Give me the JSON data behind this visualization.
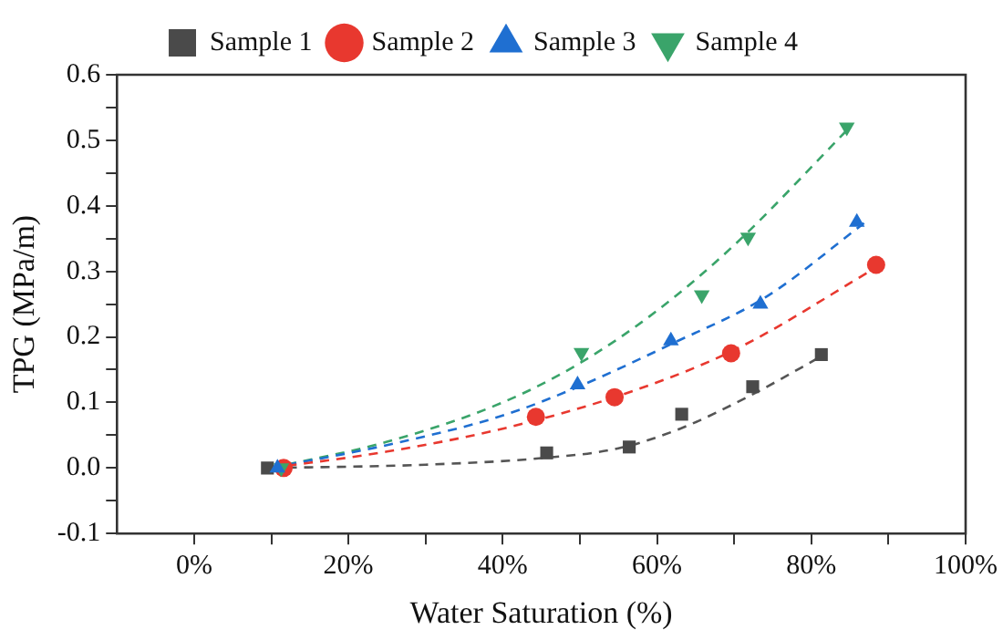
{
  "chart_data": {
    "type": "scatter",
    "xlabel": "Water Saturation (%)",
    "ylabel": "TPG (MPa/m)",
    "xlim": [
      -10,
      100
    ],
    "xticks": [
      {
        "value": 0,
        "label": "0%"
      },
      {
        "value": 10,
        "label": null
      },
      {
        "value": 20,
        "label": "20%"
      },
      {
        "value": 30,
        "label": null
      },
      {
        "value": 40,
        "label": "40%"
      },
      {
        "value": 50,
        "label": null
      },
      {
        "value": 60,
        "label": "60%"
      },
      {
        "value": 70,
        "label": null
      },
      {
        "value": 80,
        "label": "80%"
      },
      {
        "value": 90,
        "label": null
      },
      {
        "value": 100,
        "label": "100%"
      }
    ],
    "ylim": [
      -0.1,
      0.6
    ],
    "yticks": [
      -0.1,
      {
        "value": -0.05,
        "label": null
      },
      {
        "value": 0,
        "label": "0.0"
      },
      {
        "value": 0.05,
        "label": null
      },
      0.1,
      {
        "value": 0.15,
        "label": null
      },
      0.2,
      {
        "value": 0.25,
        "label": null
      },
      0.3,
      {
        "value": 0.35,
        "label": null
      },
      0.4,
      {
        "value": 0.45,
        "label": null
      },
      0.5,
      {
        "value": 0.55,
        "label": null
      },
      0.6
    ],
    "grid": false,
    "legend": "top",
    "series": [
      {
        "type": "line",
        "color": "#555555",
        "marker": "none",
        "line_style": "dashed",
        "x": [
          10,
          30,
          45,
          55,
          63,
          72,
          82
        ],
        "values": [
          0,
          0.005,
          0.015,
          0.03,
          0.06,
          0.11,
          0.175
        ]
      },
      {
        "type": "line",
        "color": "#e8382f",
        "marker": "none",
        "line_style": "dashed",
        "x": [
          10,
          25,
          40,
          55,
          70,
          89
        ],
        "values": [
          0,
          0.025,
          0.06,
          0.11,
          0.18,
          0.31
        ]
      },
      {
        "type": "line",
        "color": "#1f6fd1",
        "marker": "none",
        "line_style": "dashed",
        "x": [
          10,
          25,
          40,
          50,
          62,
          74,
          87
        ],
        "values": [
          0,
          0.035,
          0.08,
          0.125,
          0.19,
          0.26,
          0.375
        ]
      },
      {
        "type": "line",
        "color": "#3aa46a",
        "marker": "none",
        "line_style": "dashed",
        "x": [
          10,
          25,
          40,
          50,
          60,
          70,
          85
        ],
        "values": [
          0,
          0.04,
          0.1,
          0.16,
          0.24,
          0.34,
          0.52
        ]
      },
      {
        "name": "Sample 1",
        "color": "#4a4a4a",
        "marker": "square",
        "x": [
          9.5,
          45.7,
          56.4,
          63.2,
          72.4,
          81.3
        ],
        "values": [
          0,
          0.023,
          0.032,
          0.082,
          0.124,
          0.173
        ]
      },
      {
        "name": "Sample 2",
        "color": "#e8382f",
        "marker": "circle",
        "x": [
          11.6,
          44.3,
          54.5,
          69.6,
          88.4
        ],
        "values": [
          0,
          0.078,
          0.108,
          0.175,
          0.31
        ]
      },
      {
        "name": "Sample 3",
        "color": "#1f6fd1",
        "marker": "triangle",
        "x": [
          10.8,
          49.7,
          61.8,
          73.4,
          85.9
        ],
        "values": [
          0,
          0.127,
          0.194,
          0.25,
          0.375
        ]
      },
      {
        "name": "Sample 4",
        "color": "#3aa46a",
        "marker": "triangle-down",
        "x": [
          11.3,
          50.2,
          65.8,
          71.8,
          84.6
        ],
        "values": [
          0,
          0.176,
          0.264,
          0.352,
          0.52
        ]
      }
    ]
  }
}
